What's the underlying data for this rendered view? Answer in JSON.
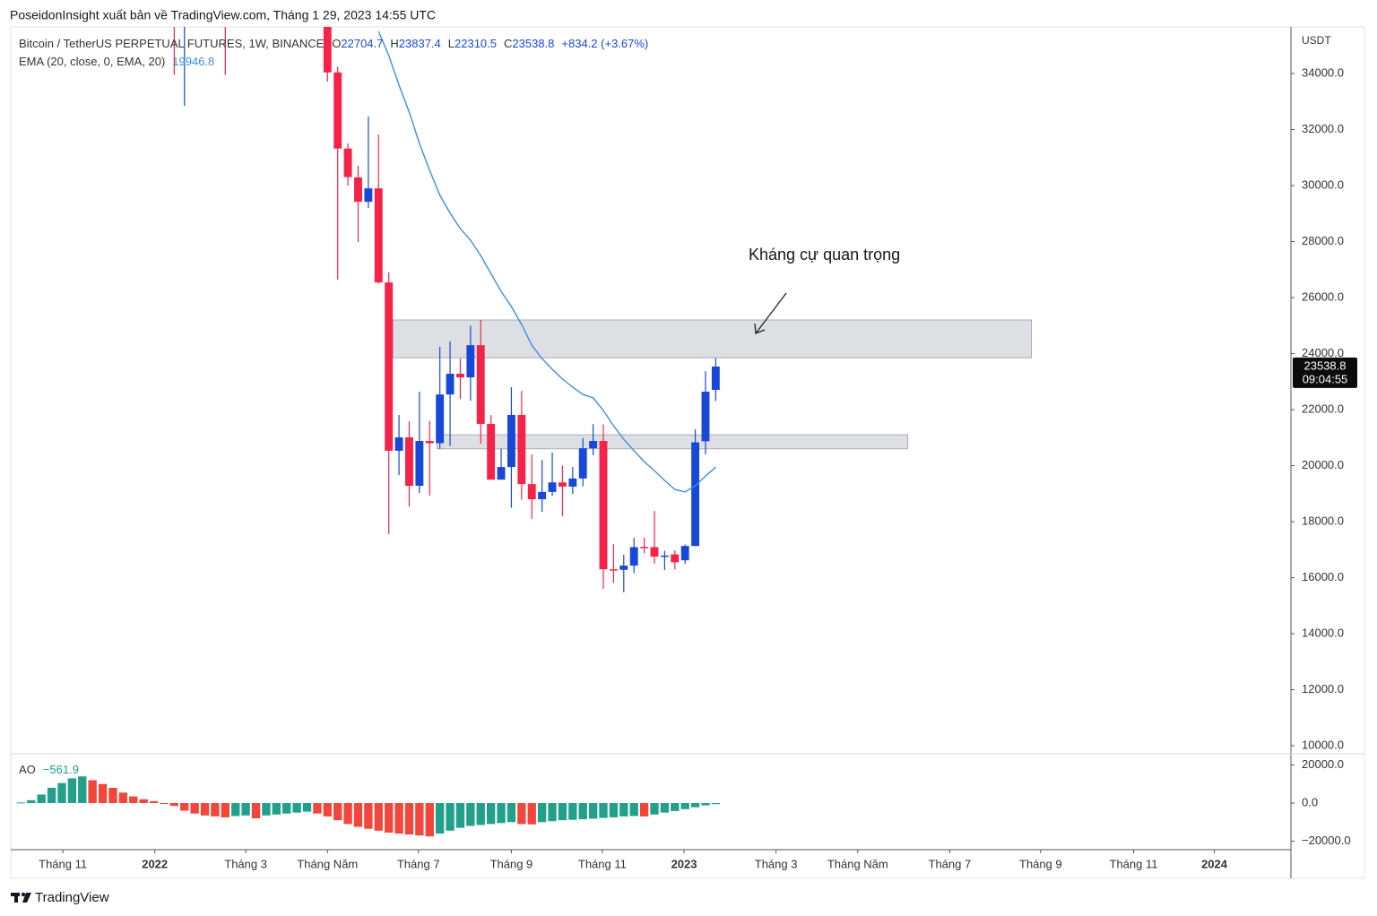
{
  "header": {
    "publisher": "PoseidonInsight xuất bản về TradingView.com, Tháng 1 29, 2023 14:55 UTC"
  },
  "footer": {
    "brand": "TradingView"
  },
  "chart_data": [
    {
      "type": "candlestick",
      "title": "Bitcoin / TetherUS PERPETUAL FUTURES, 1W, BINANCE",
      "ohlc_legend": [
        "O",
        "H",
        "L",
        "C"
      ],
      "change": "+834.2 (+3.67%)",
      "y_axis_label": "USDT",
      "x": [
        -15,
        -14,
        -10,
        0,
        1,
        2,
        3,
        4,
        5,
        6,
        7,
        8,
        9,
        10,
        11,
        12,
        13,
        14,
        15,
        16,
        17,
        18,
        19,
        20,
        21,
        22,
        23,
        24,
        25,
        26,
        27,
        28,
        29,
        30,
        31,
        32,
        33,
        34,
        35,
        36,
        37,
        38
      ],
      "open": [
        41800,
        36250,
        38350,
        38470,
        34040,
        31320,
        30290,
        29420,
        29900,
        26540,
        20530,
        21010,
        19280,
        20880,
        20800,
        22540,
        23280,
        23150,
        24300,
        21490,
        19500,
        19950,
        21810,
        19340,
        18800,
        19060,
        19400,
        19250,
        19540,
        20620,
        20880,
        16300,
        16280,
        16430,
        17100,
        17090,
        16750,
        16830,
        16620,
        17130,
        20870,
        22704.7
      ],
      "high": [
        43500,
        38300,
        39800,
        40020,
        34240,
        31500,
        30700,
        32460,
        31820,
        26900,
        21810,
        21580,
        22640,
        21600,
        24240,
        24440,
        23820,
        25000,
        25200,
        21800,
        20600,
        22800,
        22660,
        20400,
        20200,
        20470,
        20000,
        19950,
        20980,
        21480,
        21470,
        17190,
        16820,
        17420,
        17430,
        18380,
        16960,
        16980,
        17180,
        21300,
        23370,
        23837.4
      ],
      "low": [
        33950,
        32850,
        33950,
        33710,
        26640,
        30000,
        27980,
        29200,
        26500,
        17560,
        19660,
        18540,
        19020,
        18930,
        20600,
        20700,
        22380,
        22320,
        20780,
        19500,
        19500,
        18500,
        18780,
        18100,
        18350,
        18920,
        18190,
        18980,
        19260,
        20370,
        15600,
        15810,
        15480,
        16160,
        16870,
        16500,
        16270,
        16300,
        16490,
        17120,
        20400,
        22310.5
      ],
      "close": [
        36250,
        37700,
        37700,
        34040,
        31320,
        30300,
        29420,
        29900,
        26540,
        20530,
        21010,
        19280,
        20880,
        20800,
        22540,
        23280,
        23150,
        24300,
        21490,
        19500,
        19950,
        21810,
        19340,
        18800,
        19060,
        19400,
        19250,
        19540,
        20620,
        20880,
        16300,
        16280,
        16430,
        17090,
        17090,
        16750,
        16790,
        16550,
        17130,
        20830,
        22640,
        23538.8
      ],
      "up_color": "#1848d8",
      "down_color": "#f5224a",
      "series": [
        {
          "name": "EMA (20, close, 0, EMA, 20)",
          "color": "#3d8ee8",
          "x": [
            5,
            6,
            7,
            8,
            9,
            10,
            11,
            12,
            13,
            14,
            15,
            16,
            17,
            18,
            19,
            20,
            21,
            22,
            23,
            24,
            25,
            26,
            27,
            28,
            29,
            30,
            31,
            32,
            33,
            34,
            35,
            36,
            37,
            38
          ],
          "values": [
            35500,
            34640,
            33580,
            32620,
            31500,
            30540,
            29650,
            29010,
            28460,
            28050,
            27500,
            26860,
            26220,
            25680,
            25040,
            24300,
            23820,
            23440,
            23090,
            22800,
            22540,
            22420,
            21970,
            21420,
            20940,
            20530,
            20140,
            19820,
            19470,
            19150,
            19060,
            19280,
            19630,
            19946.8
          ]
        }
      ],
      "countdown": "09:04:55",
      "zones": [
        {
          "x": [
            6.4,
            68.9
          ],
          "y": [
            23850,
            25200
          ]
        },
        {
          "x": [
            10.7,
            56.8
          ],
          "y": [
            20600,
            21100
          ]
        }
      ],
      "annotation": "Kháng cự quan trọng",
      "annotation_color": "#f5224a",
      "grid": false,
      "xlim": [
        -31,
        94.3
      ],
      "xticks": [
        {
          "value": -25.9,
          "label": "Tháng 11"
        },
        {
          "value": -16.9,
          "label": "2022"
        },
        {
          "value": -8,
          "label": "Tháng 3"
        },
        {
          "value": 0,
          "label": "Tháng Năm"
        },
        {
          "value": 8.9,
          "label": "Tháng 7"
        },
        {
          "value": 18,
          "label": "Tháng 9"
        },
        {
          "value": 26.9,
          "label": "Tháng 11"
        },
        {
          "value": 34.9,
          "label": "2023"
        },
        {
          "value": 43.9,
          "label": "Tháng 3"
        },
        {
          "value": 51.9,
          "label": "Tháng Năm"
        },
        {
          "value": 60.9,
          "label": "Tháng 7"
        },
        {
          "value": 69.8,
          "label": "Tháng 9"
        },
        {
          "value": 78.9,
          "label": "Tháng 11"
        },
        {
          "value": 86.8,
          "label": "2024"
        }
      ],
      "ylim": [
        9744,
        35664
      ],
      "yticks": [
        {
          "value": 34000,
          "label": "34000.0"
        },
        {
          "value": 32000,
          "label": "32000.0"
        },
        {
          "value": 30000,
          "label": "30000.0"
        },
        {
          "value": 28000,
          "label": "28000.0"
        },
        {
          "value": 26000,
          "label": "26000.0"
        },
        {
          "value": 24000,
          "label": "24000.0"
        },
        {
          "value": 22000,
          "label": "22000.0"
        },
        {
          "value": 20000,
          "label": "20000.0"
        },
        {
          "value": 18000,
          "label": "18000.0"
        },
        {
          "value": 16000,
          "label": "16000.0"
        },
        {
          "value": 14000,
          "label": "14000.0"
        },
        {
          "value": 12000,
          "label": "12000.0"
        },
        {
          "value": 10000,
          "label": "10000.0"
        }
      ]
    },
    {
      "type": "bar",
      "title": "AO",
      "x": [
        -30,
        -29,
        -28,
        -27,
        -26,
        -25,
        -24,
        -23,
        -22,
        -21,
        -20,
        -19,
        -18,
        -17,
        -16,
        -15,
        -14,
        -13,
        -12,
        -11,
        -10,
        -9,
        -8,
        -7,
        -6,
        -5,
        -4,
        -3,
        -2,
        -1,
        0,
        1,
        2,
        3,
        4,
        5,
        6,
        7,
        8,
        9,
        10,
        11,
        12,
        13,
        14,
        15,
        16,
        17,
        18,
        19,
        20,
        21,
        22,
        23,
        24,
        25,
        26,
        27,
        28,
        29,
        30,
        31,
        32,
        33,
        34,
        35,
        36,
        37,
        38
      ],
      "values": [
        300,
        1500,
        4500,
        8000,
        10500,
        13000,
        14000,
        12000,
        10000,
        8000,
        5500,
        3500,
        2000,
        1000,
        -300,
        -1500,
        -4000,
        -5500,
        -6500,
        -7000,
        -7500,
        -6800,
        -6500,
        -8000,
        -6500,
        -6000,
        -5500,
        -5000,
        -4500,
        -5500,
        -7000,
        -9000,
        -11000,
        -12500,
        -13500,
        -14500,
        -15500,
        -16000,
        -16500,
        -17000,
        -17500,
        -16000,
        -14500,
        -13000,
        -12000,
        -11500,
        -11000,
        -10500,
        -10000,
        -11000,
        -11200,
        -10000,
        -9500,
        -9000,
        -8800,
        -8500,
        -8200,
        -7800,
        -7500,
        -7000,
        -6800,
        -7000,
        -6000,
        -5000,
        -4200,
        -3200,
        -2200,
        -1200,
        -561.9
      ],
      "last_value_label": "−561.9",
      "up_color": "#22a08a",
      "down_color": "#f0463c",
      "xlim": [
        -31,
        94.3
      ],
      "ylim": [
        -24470,
        25410
      ],
      "yticks": [
        {
          "value": 20000,
          "label": "20000.0"
        },
        {
          "value": 0,
          "label": "0.0"
        },
        {
          "value": -20000,
          "label": "−20000.0"
        }
      ]
    }
  ]
}
